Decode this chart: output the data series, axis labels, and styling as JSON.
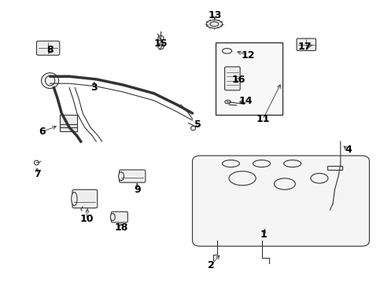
{
  "title": "",
  "bg_color": "#ffffff",
  "line_color": "#333333",
  "label_color": "#000000",
  "fig_width": 4.89,
  "fig_height": 3.6,
  "dpi": 100,
  "font_size": 9
}
